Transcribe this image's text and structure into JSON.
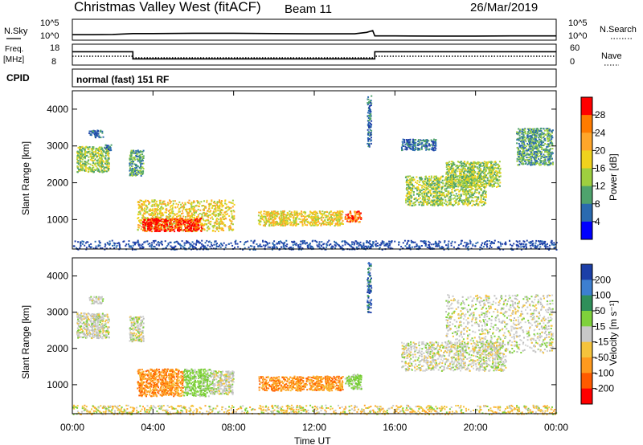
{
  "header": {
    "title": "Christmas Valley West (fitACF)",
    "beam": "Beam 11",
    "date": "26/Mar/2019"
  },
  "chart_data": [
    {
      "type": "line",
      "name": "noise-panel",
      "left_label": "N.Sky",
      "right_label": "N.Search",
      "left_ticks": [
        "10^5",
        "10^0"
      ],
      "right_ticks": [
        "10^5",
        "10^0"
      ],
      "x_hours": [
        0,
        1,
        2,
        3,
        4,
        6,
        8,
        10,
        12,
        14,
        14.6,
        14.9,
        15.0,
        16,
        18,
        20,
        22,
        24
      ],
      "n_sky_level": [
        0.22,
        0.22,
        0.23,
        0.28,
        0.28,
        0.3,
        0.3,
        0.28,
        0.27,
        0.27,
        0.35,
        0.45,
        0.15,
        0.15,
        0.14,
        0.14,
        0.15,
        0.15
      ]
    },
    {
      "type": "line",
      "name": "frequency-nave-panel",
      "left_label": "Freq. [MHz]",
      "right_label": "Nave",
      "left_ticks": [
        "18",
        "8"
      ],
      "right_ticks": [
        "60",
        "0"
      ],
      "freq_steps": [
        {
          "from": 0,
          "to": 3,
          "mhz": 14.5
        },
        {
          "from": 3,
          "to": 15,
          "mhz": 10.8
        },
        {
          "from": 15,
          "to": 24,
          "mhz": 14.5
        }
      ],
      "nave_steps": [
        {
          "from": 0,
          "to": 3,
          "value": 25
        },
        {
          "from": 3,
          "to": 15,
          "value": 20
        },
        {
          "from": 15,
          "to": 24,
          "value": 25
        }
      ]
    },
    {
      "type": "table",
      "name": "cpid-panel",
      "label": "CPID",
      "value": "normal (fast) 151 RF"
    },
    {
      "type": "heatmap",
      "name": "power-panel",
      "ylabel": "Slant Range [km]",
      "ylim": [
        200,
        4500
      ],
      "y_ticks": [
        1000,
        2000,
        3000,
        4000
      ],
      "colorbar_label": "Power [dB]",
      "colorbar_ticks": [
        "28",
        "24",
        "20",
        "16",
        "12",
        "8",
        "4"
      ],
      "colorbar_colors": [
        "#ff0000",
        "#ff7b00",
        "#ffa62a",
        "#f0d21d",
        "#9fcf3f",
        "#4fa36d",
        "#2a6ab0",
        "#0000ff"
      ],
      "regions": [
        {
          "x": [
            0.2,
            1.8
          ],
          "y": [
            2300,
            3000
          ],
          "level": 3
        },
        {
          "x": [
            0.8,
            1.5
          ],
          "y": [
            3250,
            3450
          ],
          "level": 1
        },
        {
          "x": [
            1.6,
            1.9
          ],
          "y": [
            2900,
            3050
          ],
          "level": 1
        },
        {
          "x": [
            2.8,
            3.5
          ],
          "y": [
            2200,
            2900
          ],
          "level": 2
        },
        {
          "x": [
            3.2,
            8.0
          ],
          "y": [
            700,
            1550
          ],
          "level": 4
        },
        {
          "x": [
            3.4,
            6.4
          ],
          "y": [
            700,
            1050
          ],
          "level": 7
        },
        {
          "x": [
            9.2,
            13.4
          ],
          "y": [
            850,
            1250
          ],
          "level": 4
        },
        {
          "x": [
            13.5,
            14.3
          ],
          "y": [
            950,
            1250
          ],
          "level": 6
        },
        {
          "x": [
            14.6,
            14.8
          ],
          "y": [
            3000,
            4400
          ],
          "level": 1
        },
        {
          "x": [
            16.3,
            18.0
          ],
          "y": [
            2900,
            3200
          ],
          "level": 1
        },
        {
          "x": [
            16.5,
            20.5
          ],
          "y": [
            1400,
            2200
          ],
          "level": 3
        },
        {
          "x": [
            18.5,
            21.2
          ],
          "y": [
            1900,
            2600
          ],
          "level": 3
        },
        {
          "x": [
            22.0,
            23.8
          ],
          "y": [
            2500,
            3500
          ],
          "level": 2
        },
        {
          "x": [
            0.0,
            24.0
          ],
          "y": [
            200,
            450
          ],
          "level": 0
        }
      ]
    },
    {
      "type": "heatmap",
      "name": "velocity-panel",
      "ylabel": "Slant Range [km]",
      "ylim": [
        200,
        4500
      ],
      "y_ticks": [
        1000,
        2000,
        3000,
        4000
      ],
      "x_ticks": [
        "00:00",
        "04:00",
        "08:00",
        "12:00",
        "16:00",
        "20:00",
        "00:00"
      ],
      "xlabel": "Time UT",
      "colorbar_label": "Velocity [m s⁻¹]",
      "colorbar_ticks": [
        "200",
        "100",
        "50",
        "15",
        "-15",
        "-50",
        "-100",
        "-200"
      ],
      "colorbar_colors": [
        "#1c3fa8",
        "#3d7fd0",
        "#2f8f5a",
        "#7fd13b",
        "#c8c8c8",
        "#f5c33c",
        "#ff9a1e",
        "#ff5a00",
        "#ff0000"
      ],
      "regions": [
        {
          "x": [
            0.2,
            1.8
          ],
          "y": [
            2300,
            3000
          ],
          "class": "gray"
        },
        {
          "x": [
            0.8,
            1.5
          ],
          "y": [
            3250,
            3450
          ],
          "class": "gray"
        },
        {
          "x": [
            2.8,
            3.5
          ],
          "y": [
            2200,
            2900
          ],
          "class": "gray"
        },
        {
          "x": [
            3.2,
            5.5
          ],
          "y": [
            700,
            1450
          ],
          "class": "orange"
        },
        {
          "x": [
            5.5,
            6.8
          ],
          "y": [
            700,
            1450
          ],
          "class": "green"
        },
        {
          "x": [
            6.8,
            8.0
          ],
          "y": [
            750,
            1400
          ],
          "class": "gray"
        },
        {
          "x": [
            9.2,
            13.4
          ],
          "y": [
            850,
            1250
          ],
          "class": "orange"
        },
        {
          "x": [
            13.5,
            14.3
          ],
          "y": [
            900,
            1300
          ],
          "class": "green"
        },
        {
          "x": [
            14.6,
            14.8
          ],
          "y": [
            3000,
            4400
          ],
          "class": "blue"
        },
        {
          "x": [
            16.3,
            21.5
          ],
          "y": [
            1400,
            2200
          ],
          "class": "gray"
        },
        {
          "x": [
            18.5,
            23.8
          ],
          "y": [
            1900,
            3500
          ],
          "class": "gray"
        },
        {
          "x": [
            0.0,
            24.0
          ],
          "y": [
            200,
            450
          ],
          "class": "yellow"
        }
      ]
    }
  ]
}
